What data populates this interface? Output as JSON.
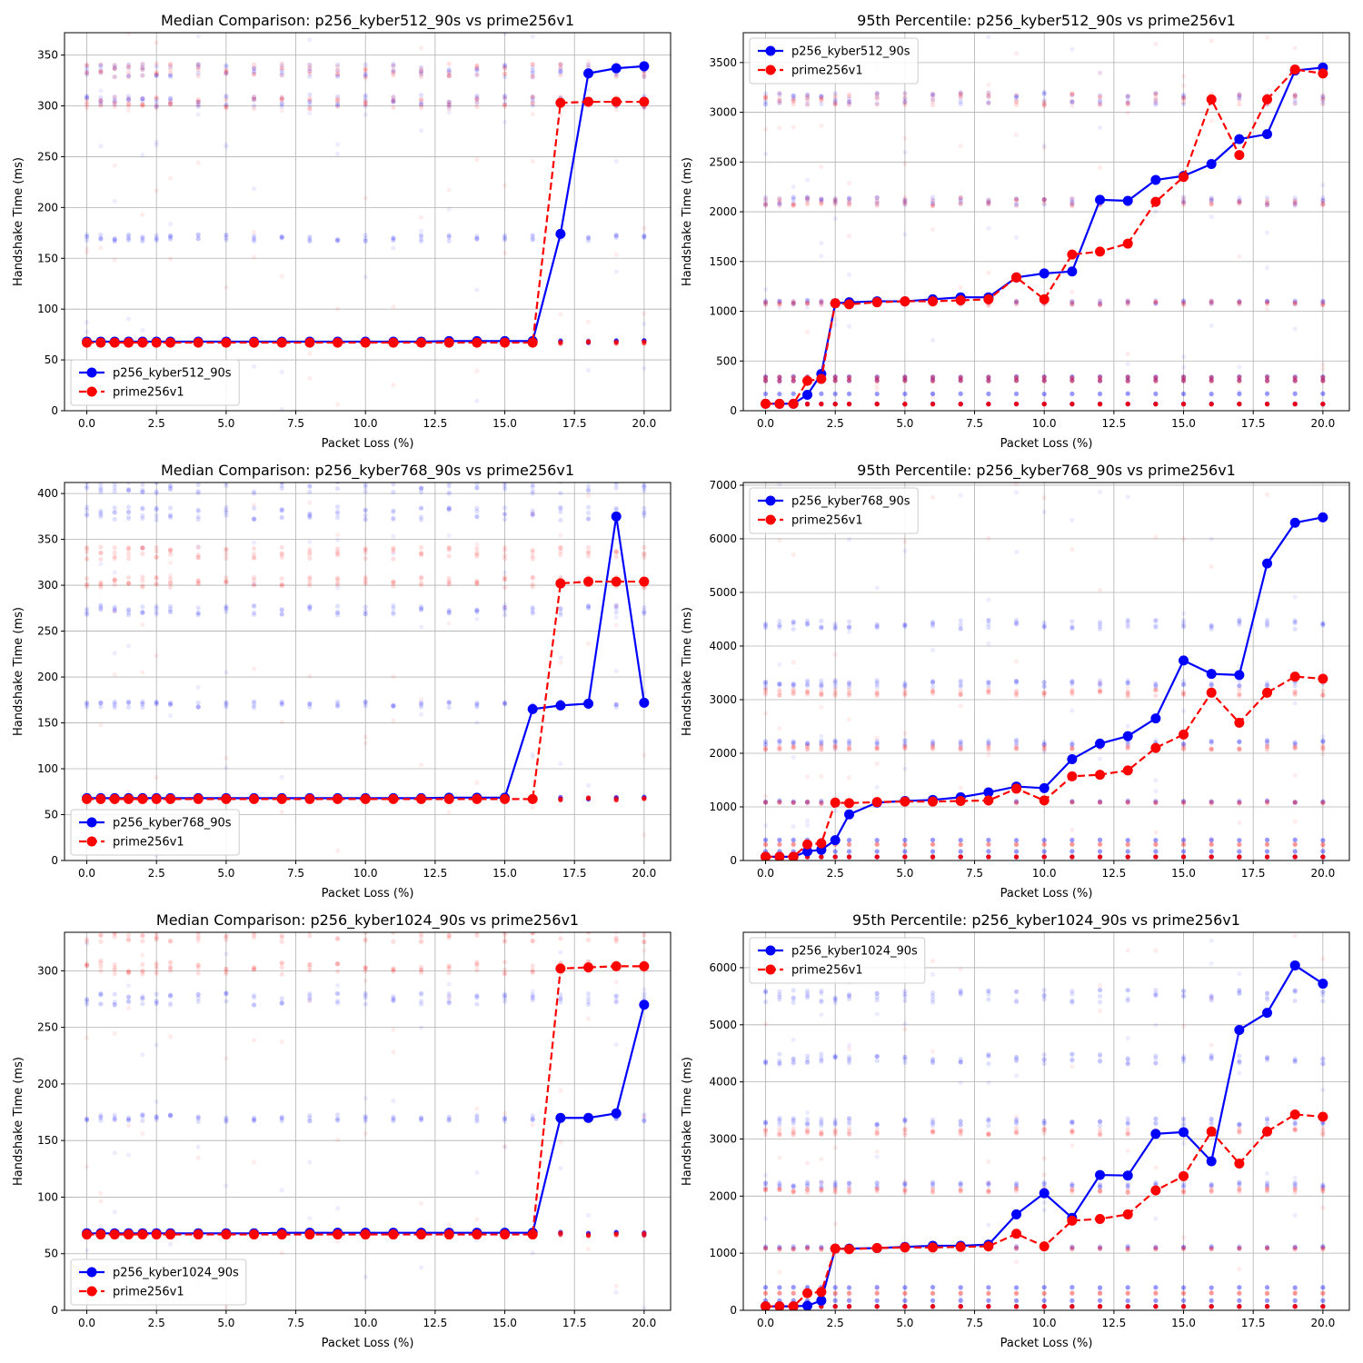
{
  "chart_data": [
    {
      "type": "line",
      "title": "Median Comparison: p256_kyber512_90s vs prime256v1",
      "xlabel": "Packet Loss (%)",
      "ylabel": "Handshake Time (ms)",
      "xlim": [
        -0.8,
        20.95
      ],
      "ylim": [
        0,
        372
      ],
      "xticks": [
        0.0,
        2.5,
        5.0,
        7.5,
        10.0,
        12.5,
        15.0,
        17.5,
        20.0
      ],
      "yticks": [
        0,
        50,
        100,
        150,
        200,
        250,
        300,
        350
      ],
      "ytick_labels": [
        "0",
        "50",
        "100",
        "150",
        "200",
        "250",
        "300",
        "350"
      ],
      "grid": true,
      "legend_loc": "lower-left",
      "x": [
        0,
        0.5,
        1,
        1.5,
        2,
        2.5,
        3,
        4,
        5,
        6,
        7,
        8,
        9,
        10,
        11,
        12,
        13,
        14,
        15,
        16,
        17,
        18,
        19,
        20
      ],
      "series": [
        {
          "name": "p256_kyber512_90s",
          "color": "#0000ff",
          "dash": "solid",
          "values": [
            68,
            68,
            68,
            68,
            68,
            68,
            68,
            68,
            68,
            68,
            68,
            68,
            68,
            68,
            68,
            68,
            68.5,
            68.5,
            68.5,
            68.5,
            174,
            332,
            337,
            339
          ]
        },
        {
          "name": "prime256v1",
          "color": "#ff0000",
          "dash": "dashed",
          "values": [
            67,
            67,
            67,
            67,
            67,
            67,
            67,
            67,
            67,
            67,
            67,
            67,
            67,
            67,
            67,
            67,
            67,
            67,
            67,
            67,
            303,
            304,
            304,
            304
          ]
        }
      ],
      "scatter_clusters": {
        "blue": [
          68,
          170,
          305,
          335
        ],
        "red": [
          67,
          303,
          335
        ],
        "y_max": 372
      }
    },
    {
      "type": "line",
      "title": "95th Percentile: p256_kyber512_90s vs prime256v1",
      "xlabel": "Packet Loss (%)",
      "ylabel": "Handshake Time (ms)",
      "xlim": [
        -0.8,
        20.95
      ],
      "ylim": [
        0,
        3800
      ],
      "xticks": [
        0.0,
        2.5,
        5.0,
        7.5,
        10.0,
        12.5,
        15.0,
        17.5,
        20.0
      ],
      "yticks": [
        0,
        500,
        1000,
        1500,
        2000,
        2500,
        3000,
        3500
      ],
      "ytick_labels": [
        "0",
        "500",
        "1000",
        "1500",
        "2000",
        "2500",
        "3000",
        "3500"
      ],
      "grid": true,
      "legend_loc": "upper-left",
      "x": [
        0,
        0.5,
        1,
        1.5,
        2,
        2.5,
        3,
        4,
        5,
        6,
        7,
        8,
        9,
        10,
        11,
        12,
        13,
        14,
        15,
        16,
        17,
        18,
        19,
        20
      ],
      "series": [
        {
          "name": "p256_kyber512_90s",
          "color": "#0000ff",
          "dash": "solid",
          "values": [
            70,
            70,
            70,
            160,
            370,
            1080,
            1090,
            1100,
            1100,
            1120,
            1140,
            1140,
            1340,
            1380,
            1400,
            2120,
            2110,
            2320,
            2360,
            2480,
            2730,
            2780,
            3420,
            3450
          ]
        },
        {
          "name": "prime256v1",
          "color": "#ff0000",
          "dash": "dashed",
          "values": [
            70,
            70,
            70,
            300,
            320,
            1080,
            1070,
            1090,
            1100,
            1100,
            1110,
            1120,
            1340,
            1120,
            1570,
            1600,
            1680,
            2100,
            2350,
            3130,
            2570,
            3130,
            3430,
            3390
          ]
        }
      ],
      "scatter_clusters": {
        "blue": [
          68,
          170,
          305,
          340,
          1090,
          2110,
          3140
        ],
        "red": [
          67,
          300,
          335,
          1080,
          2100,
          3130
        ],
        "y_max": 3800
      }
    },
    {
      "type": "line",
      "title": "Median Comparison: p256_kyber768_90s vs prime256v1",
      "xlabel": "Packet Loss (%)",
      "ylabel": "Handshake Time (ms)",
      "xlim": [
        -0.8,
        20.95
      ],
      "ylim": [
        0,
        412
      ],
      "xticks": [
        0.0,
        2.5,
        5.0,
        7.5,
        10.0,
        12.5,
        15.0,
        17.5,
        20.0
      ],
      "yticks": [
        0,
        50,
        100,
        150,
        200,
        250,
        300,
        350,
        400
      ],
      "ytick_labels": [
        "0",
        "50",
        "100",
        "150",
        "200",
        "250",
        "300",
        "350",
        "400"
      ],
      "grid": true,
      "legend_loc": "lower-left",
      "x": [
        0,
        0.5,
        1,
        1.5,
        2,
        2.5,
        3,
        4,
        5,
        6,
        7,
        8,
        9,
        10,
        11,
        12,
        13,
        14,
        15,
        16,
        17,
        18,
        19,
        20
      ],
      "series": [
        {
          "name": "p256_kyber768_90s",
          "color": "#0000ff",
          "dash": "solid",
          "values": [
            68,
            68,
            68,
            68,
            68,
            68,
            68,
            68,
            68,
            68,
            68,
            68,
            68,
            68,
            68,
            68,
            68.5,
            68.5,
            68.5,
            165,
            169,
            171,
            375,
            172
          ]
        },
        {
          "name": "prime256v1",
          "color": "#ff0000",
          "dash": "dashed",
          "values": [
            67,
            67,
            67,
            67,
            67,
            67,
            67,
            67,
            67,
            67,
            67,
            67,
            67,
            67,
            67,
            67,
            67,
            67,
            67,
            67,
            302,
            304,
            304,
            304
          ]
        }
      ],
      "scatter_clusters": {
        "blue": [
          68,
          170,
          273,
          378,
          408
        ],
        "red": [
          67,
          303,
          335
        ],
        "y_max": 412
      }
    },
    {
      "type": "line",
      "title": "95th Percentile: p256_kyber768_90s vs prime256v1",
      "xlabel": "Packet Loss (%)",
      "ylabel": "Handshake Time (ms)",
      "xlim": [
        -0.8,
        20.95
      ],
      "ylim": [
        0,
        7050
      ],
      "xticks": [
        0.0,
        2.5,
        5.0,
        7.5,
        10.0,
        12.5,
        15.0,
        17.5,
        20.0
      ],
      "yticks": [
        0,
        1000,
        2000,
        3000,
        4000,
        5000,
        6000,
        7000
      ],
      "ytick_labels": [
        "0",
        "1000",
        "2000",
        "3000",
        "4000",
        "5000",
        "6000",
        "7000"
      ],
      "grid": true,
      "legend_loc": "upper-left",
      "x": [
        0,
        0.5,
        1,
        1.5,
        2,
        2.5,
        3,
        4,
        5,
        6,
        7,
        8,
        9,
        10,
        11,
        12,
        13,
        14,
        15,
        16,
        17,
        18,
        19,
        20
      ],
      "series": [
        {
          "name": "p256_kyber768_90s",
          "color": "#0000ff",
          "dash": "solid",
          "values": [
            70,
            70,
            70,
            170,
            200,
            380,
            860,
            1080,
            1110,
            1130,
            1180,
            1270,
            1380,
            1350,
            1890,
            2180,
            2320,
            2650,
            3730,
            3480,
            3460,
            5540,
            6300,
            6400
          ]
        },
        {
          "name": "prime256v1",
          "color": "#ff0000",
          "dash": "dashed",
          "values": [
            70,
            70,
            70,
            300,
            320,
            1080,
            1070,
            1090,
            1100,
            1100,
            1110,
            1120,
            1340,
            1120,
            1570,
            1600,
            1680,
            2100,
            2350,
            3130,
            2570,
            3130,
            3430,
            3390
          ]
        }
      ],
      "scatter_clusters": {
        "blue": [
          68,
          170,
          380,
          1100,
          2200,
          3300,
          4400
        ],
        "red": [
          67,
          300,
          1080,
          2100,
          3130
        ],
        "y_max": 7050
      }
    },
    {
      "type": "line",
      "title": "Median Comparison: p256_kyber1024_90s vs prime256v1",
      "xlabel": "Packet Loss (%)",
      "ylabel": "Handshake Time (ms)",
      "xlim": [
        -0.8,
        20.95
      ],
      "ylim": [
        0,
        334
      ],
      "xticks": [
        0.0,
        2.5,
        5.0,
        7.5,
        10.0,
        12.5,
        15.0,
        17.5,
        20.0
      ],
      "yticks": [
        0,
        50,
        100,
        150,
        200,
        250,
        300
      ],
      "ytick_labels": [
        "0",
        "50",
        "100",
        "150",
        "200",
        "250",
        "300"
      ],
      "grid": true,
      "legend_loc": "lower-left",
      "x": [
        0,
        0.5,
        1,
        1.5,
        2,
        2.5,
        3,
        4,
        5,
        6,
        7,
        8,
        9,
        10,
        11,
        12,
        13,
        14,
        15,
        16,
        17,
        18,
        19,
        20
      ],
      "series": [
        {
          "name": "p256_kyber1024_90s",
          "color": "#0000ff",
          "dash": "solid",
          "values": [
            68,
            68,
            68,
            68,
            68,
            68,
            68,
            68,
            68,
            68,
            68.5,
            68.5,
            68.5,
            68.5,
            68.5,
            68.5,
            68.5,
            68.5,
            68.5,
            68.5,
            170,
            170,
            174,
            270
          ]
        },
        {
          "name": "prime256v1",
          "color": "#ff0000",
          "dash": "dashed",
          "values": [
            67,
            67,
            67,
            67,
            67,
            67,
            67,
            67,
            67,
            67,
            67,
            67,
            67,
            67,
            67,
            67,
            67,
            67,
            67,
            67,
            302,
            303,
            304,
            304
          ]
        }
      ],
      "scatter_clusters": {
        "blue": [
          68,
          170,
          275
        ],
        "red": [
          67,
          303,
          332
        ],
        "y_max": 334
      }
    },
    {
      "type": "line",
      "title": "95th Percentile: p256_kyber1024_90s vs prime256v1",
      "xlabel": "Packet Loss (%)",
      "ylabel": "Handshake Time (ms)",
      "xlim": [
        -0.8,
        20.95
      ],
      "ylim": [
        0,
        6620
      ],
      "xticks": [
        0.0,
        2.5,
        5.0,
        7.5,
        10.0,
        12.5,
        15.0,
        17.5,
        20.0
      ],
      "yticks": [
        0,
        1000,
        2000,
        3000,
        4000,
        5000,
        6000
      ],
      "ytick_labels": [
        "0",
        "1000",
        "2000",
        "3000",
        "4000",
        "5000",
        "6000"
      ],
      "grid": true,
      "legend_loc": "upper-left",
      "x": [
        0,
        0.5,
        1,
        1.5,
        2,
        2.5,
        3,
        4,
        5,
        6,
        7,
        8,
        9,
        10,
        11,
        12,
        13,
        14,
        15,
        16,
        17,
        18,
        19,
        20
      ],
      "series": [
        {
          "name": "p256_kyber1024_90s",
          "color": "#0000ff",
          "dash": "solid",
          "values": [
            70,
            70,
            70,
            80,
            170,
            1080,
            1080,
            1090,
            1110,
            1130,
            1130,
            1150,
            1680,
            2050,
            1620,
            2370,
            2360,
            3090,
            3120,
            2610,
            4910,
            5210,
            6040,
            5720
          ]
        },
        {
          "name": "prime256v1",
          "color": "#ff0000",
          "dash": "dashed",
          "values": [
            70,
            70,
            70,
            300,
            320,
            1080,
            1070,
            1090,
            1100,
            1100,
            1110,
            1120,
            1340,
            1120,
            1570,
            1600,
            1680,
            2100,
            2350,
            3130,
            2570,
            3130,
            3430,
            3390
          ]
        }
      ],
      "scatter_clusters": {
        "blue": [
          68,
          170,
          400,
          1100,
          2200,
          3300,
          4400,
          5500
        ],
        "red": [
          67,
          300,
          1080,
          2100,
          3130
        ],
        "y_max": 6620
      }
    }
  ]
}
